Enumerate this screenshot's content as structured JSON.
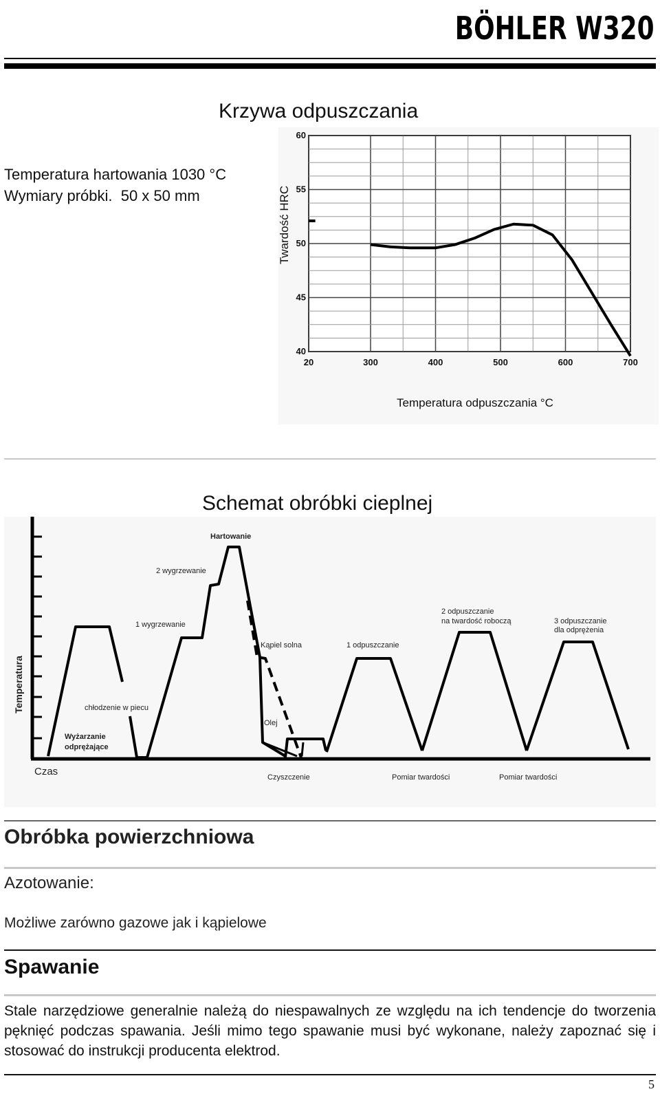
{
  "header": {
    "brand": "BÖHLER W320"
  },
  "tempering": {
    "title": "Krzywa odpuszczania",
    "hardening_temp": "Temperatura hartowania 1030 °C",
    "sample_size": "Wymiary próbki.  50 x 50 mm"
  },
  "chart_data": {
    "type": "line",
    "title": "",
    "xlabel": "Temperatura odpuszczania °C",
    "ylabel": "Twardość HRC",
    "xlim": [
      20,
      700
    ],
    "ylim": [
      40,
      60
    ],
    "x_ticks": [
      "20",
      "300",
      "400",
      "500",
      "600",
      "700"
    ],
    "y_ticks": [
      "40",
      "45",
      "50",
      "55",
      "60"
    ],
    "grid": true,
    "series": [
      {
        "initial_hardness": {
          "x": [
            20,
            50
          ],
          "y": [
            52.1,
            52.1
          ]
        },
        "x": [
          300,
          330,
          360,
          400,
          430,
          460,
          490,
          520,
          550,
          580,
          610,
          640,
          670,
          700
        ],
        "y": [
          49.9,
          49.7,
          49.6,
          49.6,
          49.9,
          50.5,
          51.3,
          51.8,
          51.7,
          50.8,
          48.5,
          45.5,
          42.5,
          39.6
        ]
      }
    ]
  },
  "schema": {
    "title": "Schemat obróbki cieplnej",
    "y_label": "Temperatura",
    "x_label": "Czas",
    "labels": {
      "hartowanie": "Hartowanie",
      "wygrzewanie2": "2 wygrzewanie",
      "wygrzewanie1": "1 wygrzewanie",
      "kapiel": "Kąpiel solna",
      "olej": "Olej",
      "chlodzenie": "chłodzenie w piecu",
      "wyzarzanie1": "Wyżarzanie",
      "wyzarzanie2": "odprężające",
      "odpuszczanie1": "1 odpuszczanie",
      "odpuszczanie2a": "2 odpuszczanie",
      "odpuszczanie2b": "na twardość roboczą",
      "odpuszczanie3a": "3 odpuszczanie",
      "odpuszczanie3b": "dla odprężenia",
      "czyszczenie": "Czyszczenie",
      "pomiar1": "Pomiar twardości",
      "pomiar2": "Pomiar twardości"
    }
  },
  "surface": {
    "title": "Obróbka powierzchniowa",
    "nitriding_label": "Azotowanie:",
    "nitriding_text": "Możliwe zarówno gazowe jak i kąpielowe"
  },
  "welding": {
    "title": "Spawanie",
    "text": "Stale narzędziowe generalnie należą do niespawalnych ze względu na ich tendencje do tworzenia pęknięć podczas spawania. Jeśli mimo tego spawanie musi być wykonane, należy zapoznać się i stosować do instrukcji producenta elektrod."
  },
  "footer": {
    "page": "5"
  }
}
